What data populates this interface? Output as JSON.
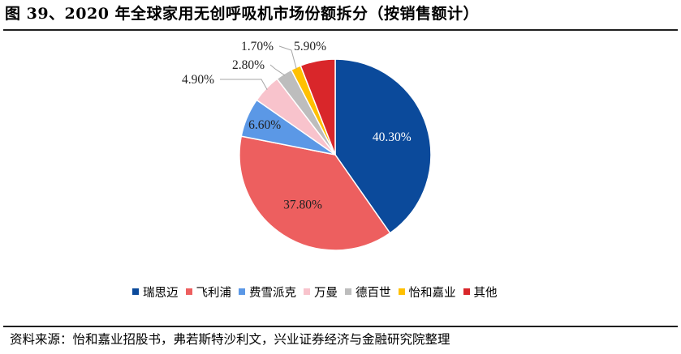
{
  "title": "图 39、2020 年全球家用无创呼吸机市场份额拆分（按销售额计）",
  "source": "资料来源：怡和嘉业招股书，弗若斯特沙利文，兴业证券经济与金融研究院整理",
  "chart_data": {
    "type": "pie",
    "title": "图 39、2020 年全球家用无创呼吸机市场份额拆分（按销售额计）",
    "unit": "%",
    "start": "12 o'clock, clockwise",
    "legend_position": "bottom",
    "slices": [
      {
        "name": "瑞思迈",
        "value": 40.3,
        "label": "40.30%",
        "color": "#0b4a9b",
        "label_text_color": "#ffffff"
      },
      {
        "name": "飞利浦",
        "value": 37.8,
        "label": "37.80%",
        "color": "#ed5f5f",
        "label_text_color": "#222222"
      },
      {
        "name": "费雪派克",
        "value": 6.6,
        "label": "6.60%",
        "color": "#5b98e6",
        "label_text_color": "#222222"
      },
      {
        "name": "万曼",
        "value": 4.9,
        "label": "4.90%",
        "color": "#f8c3cc",
        "label_text_color": "#222222"
      },
      {
        "name": "德百世",
        "value": 2.8,
        "label": "2.80%",
        "color": "#bdbdbd",
        "label_text_color": "#222222"
      },
      {
        "name": "怡和嘉业",
        "value": 1.7,
        "label": "1.70%",
        "color": "#ffc000",
        "label_text_color": "#222222"
      },
      {
        "name": "其他",
        "value": 5.9,
        "label": "5.90%",
        "color": "#d9262a",
        "label_text_color": "#222222"
      }
    ]
  }
}
